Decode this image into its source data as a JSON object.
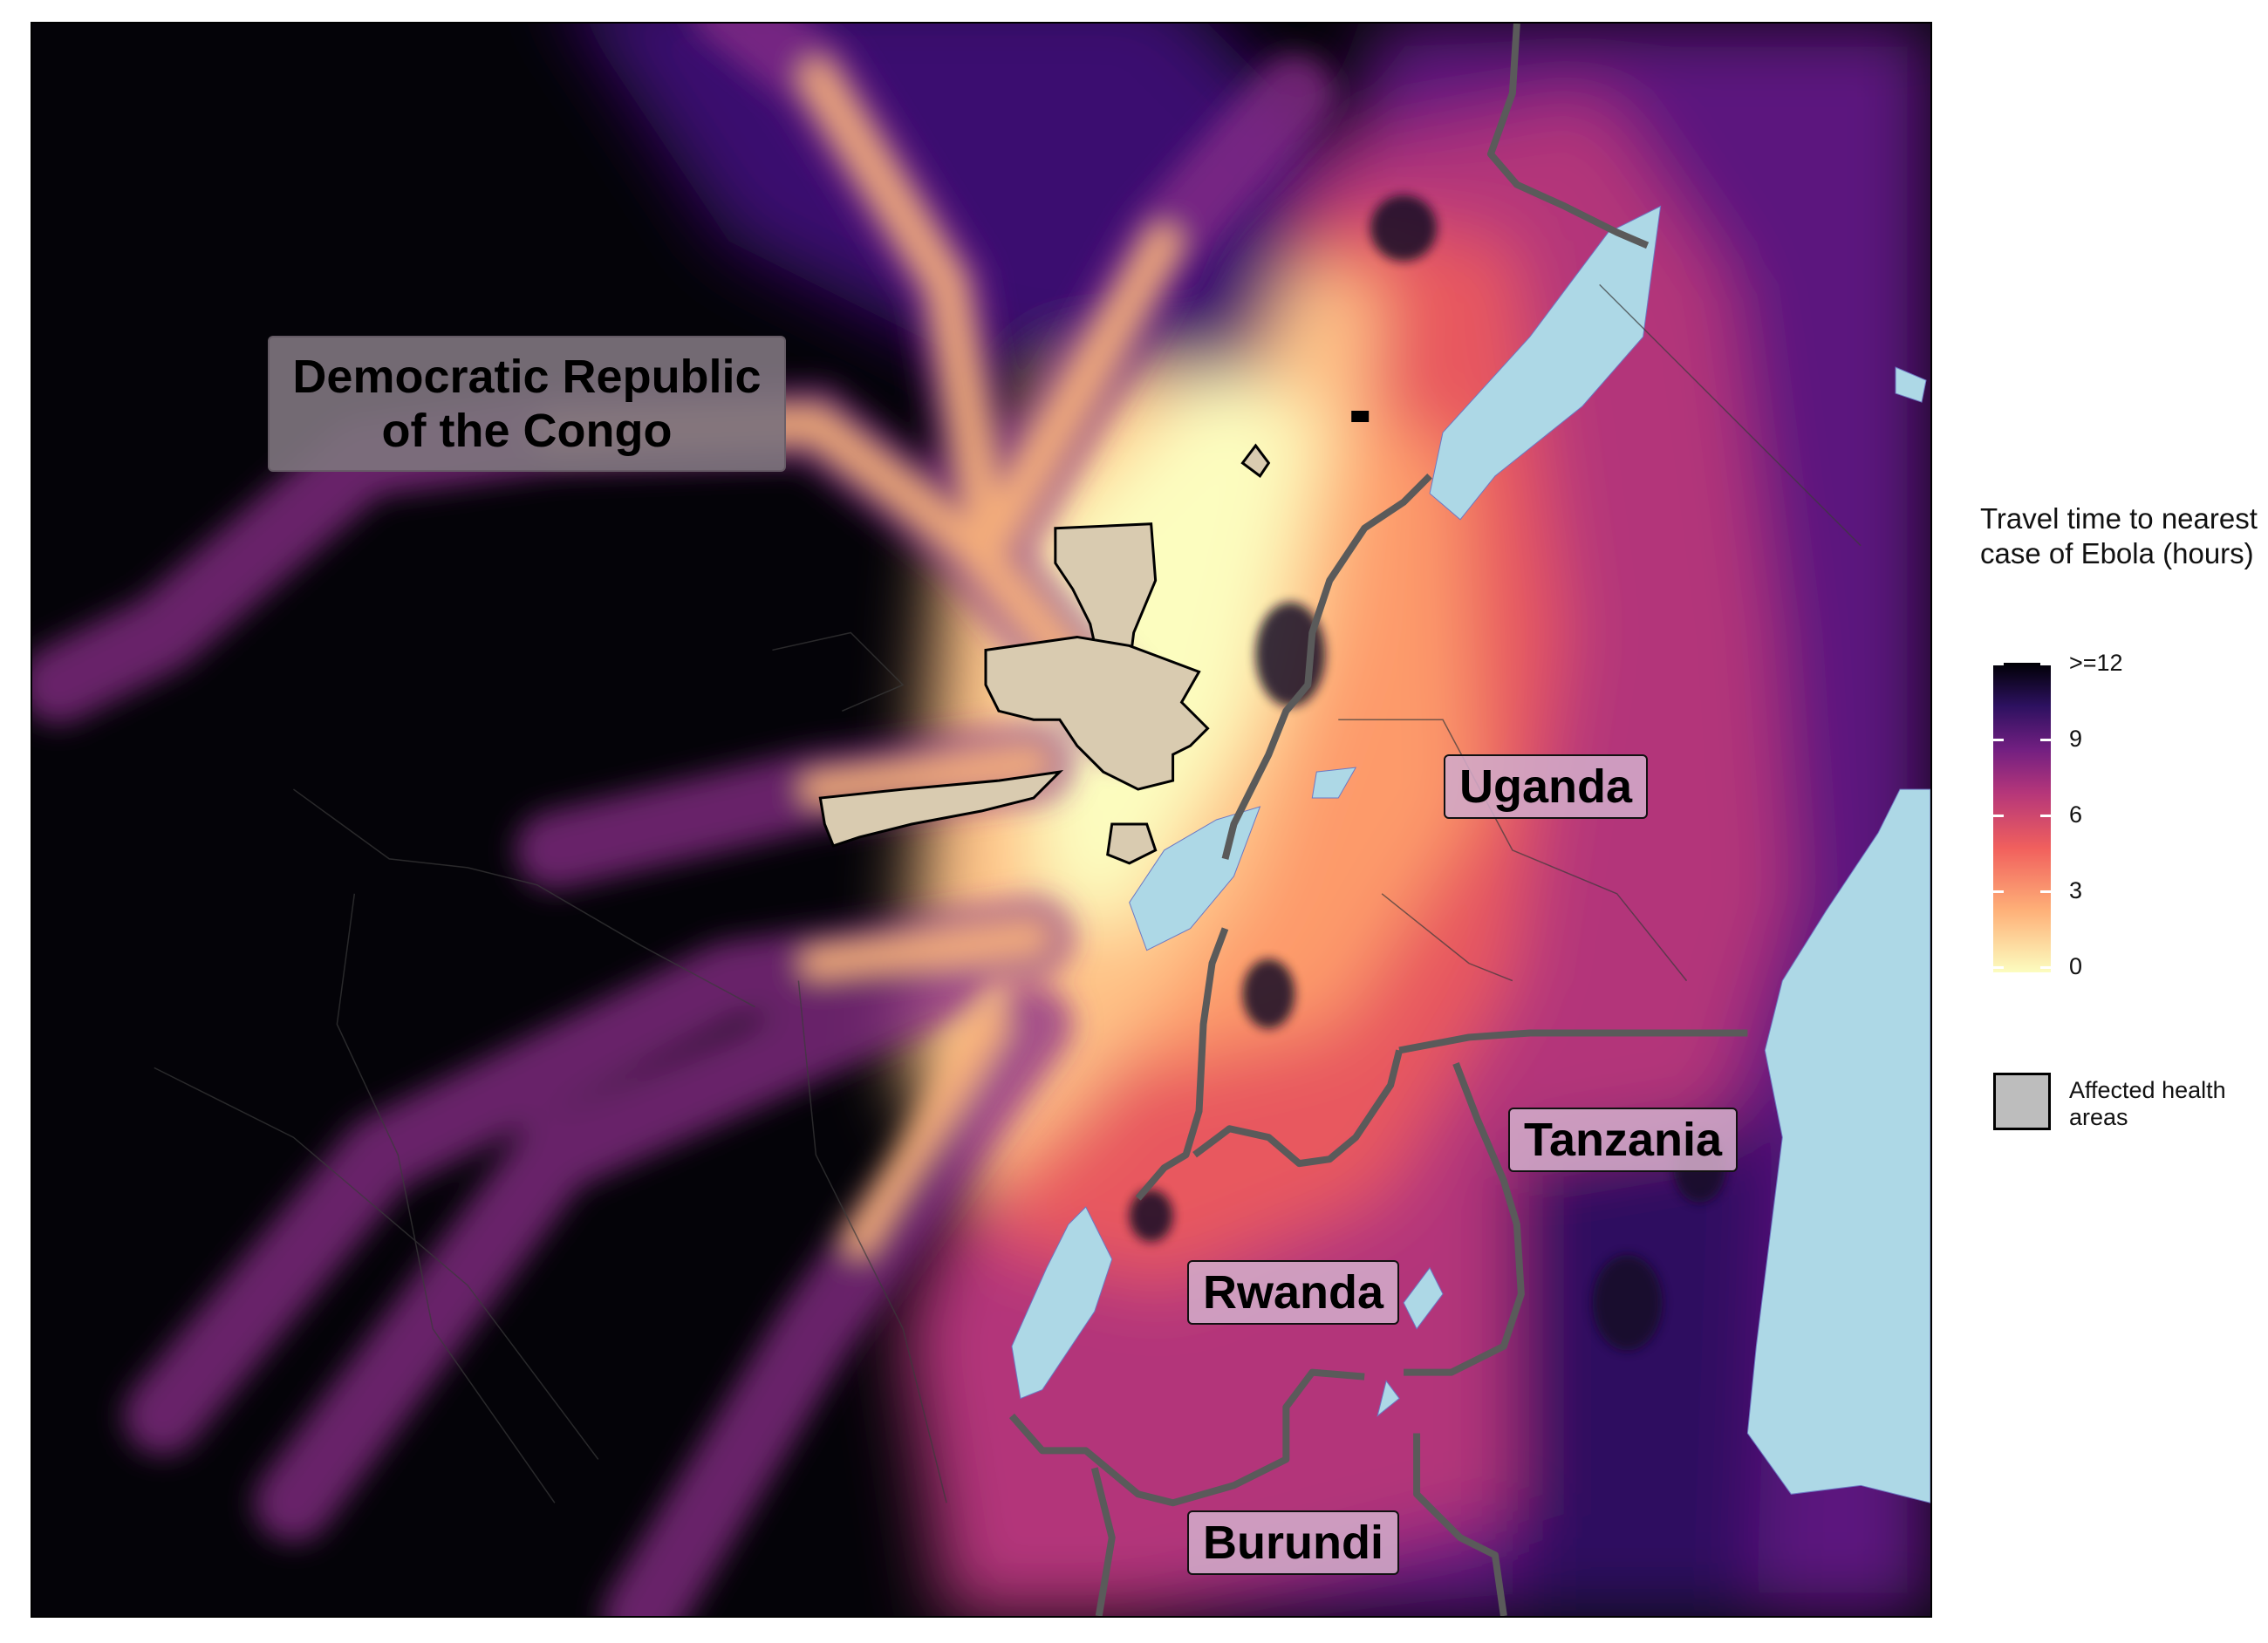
{
  "map": {
    "labels": {
      "drc": "Democratic Republic of the Congo",
      "uganda": "Uganda",
      "tanzania": "Tanzania",
      "rwanda": "Rwanda",
      "burundi": "Burundi"
    },
    "colors": {
      "background": "#040308",
      "water": "#add8e6",
      "border": "#555555",
      "affected_fill": "#d9cbb0",
      "label_box": "#d2aac8"
    }
  },
  "legend": {
    "title": "Travel time to nearest case of Ebola (hours)",
    "colorscale": "magma-reversed",
    "ticks": [
      ">=12",
      "9",
      "6",
      "3",
      "0"
    ],
    "affected_label": "Affected health areas"
  }
}
